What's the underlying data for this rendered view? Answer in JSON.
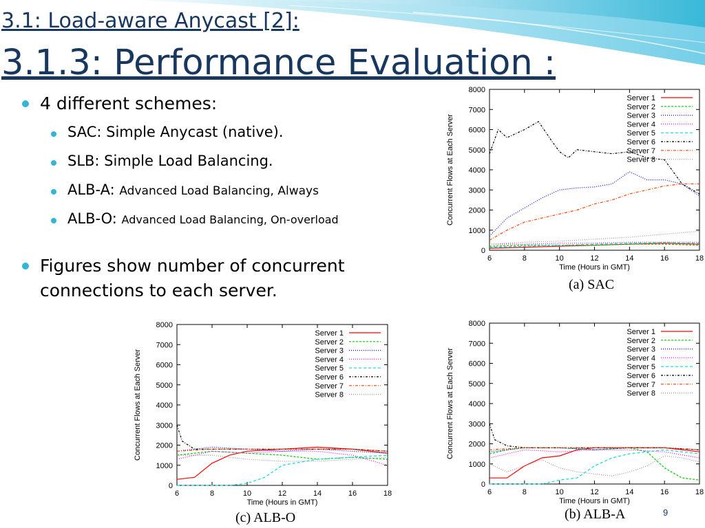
{
  "slide": {
    "subtitle": "3.1: Load-aware Anycast [2]:",
    "title": "3.1.3: Performance Evaluation :",
    "page_number": "9",
    "accent": "#31b6d6",
    "title_color": "#17375e"
  },
  "bullets": {
    "b1": "4 different schemes:",
    "b1_items": [
      {
        "main": "SAC: Simple Anycast  (native).",
        "detail": ""
      },
      {
        "main": "SLB: Simple Load Balancing.",
        "detail": ""
      },
      {
        "main": "ALB-A: ",
        "detail": "Advanced Load Balancing, Always"
      },
      {
        "main": "ALB-O: ",
        "detail": "Advanced Load Balancing, On-overload"
      }
    ],
    "b2_line1": "Figures show number of concurrent",
    "b2_line2": "connections to each server."
  },
  "chart_data": [
    {
      "id": "sac",
      "type": "line",
      "caption": "(a) SAC",
      "xlabel": "Time (Hours in GMT)",
      "ylabel": "Concurrent Flows at Each Server",
      "xlim": [
        6,
        18
      ],
      "ylim": [
        0,
        8000
      ],
      "xticks": [
        "6",
        "8",
        "10",
        "12",
        "14",
        "16",
        "18"
      ],
      "yticks": [
        "0",
        "1000",
        "2000",
        "3000",
        "4000",
        "5000",
        "6000",
        "7000",
        "8000"
      ],
      "legend_position": "top-right",
      "series": [
        {
          "name": "Server 1",
          "color": "#ff0000",
          "dash": "",
          "x": [
            6,
            8,
            10,
            12,
            14,
            16,
            18
          ],
          "y": [
            100,
            150,
            200,
            250,
            300,
            350,
            300
          ]
        },
        {
          "name": "Server 2",
          "color": "#00cc00",
          "dash": "3,2",
          "x": [
            6,
            8,
            10,
            12,
            14,
            16,
            18
          ],
          "y": [
            200,
            250,
            250,
            250,
            300,
            300,
            250
          ]
        },
        {
          "name": "Server 3",
          "color": "#0000ff",
          "dash": "1,2",
          "x": [
            6,
            7,
            8,
            9,
            10,
            11,
            12,
            13,
            14,
            15,
            16,
            17,
            18
          ],
          "y": [
            700,
            1600,
            2100,
            2600,
            3000,
            3100,
            3150,
            3300,
            3900,
            3500,
            3500,
            3300,
            2700
          ]
        },
        {
          "name": "Server 4",
          "color": "#ff00ff",
          "dash": "1,2",
          "x": [
            6,
            8,
            10,
            12,
            14,
            16,
            18
          ],
          "y": [
            300,
            300,
            350,
            350,
            400,
            400,
            400
          ]
        },
        {
          "name": "Server 5",
          "color": "#00dddd",
          "dash": "4,3",
          "x": [
            6,
            8,
            10,
            12,
            14,
            16,
            18
          ],
          "y": [
            150,
            200,
            250,
            300,
            350,
            400,
            350
          ]
        },
        {
          "name": "Server 6",
          "color": "#000000",
          "dash": "3,2,1,2",
          "x": [
            6,
            6.5,
            7,
            8,
            8.8,
            9.5,
            10,
            10.5,
            11,
            12,
            13,
            14,
            15,
            16,
            17,
            18
          ],
          "y": [
            4800,
            6000,
            5600,
            6000,
            6400,
            5500,
            4900,
            4600,
            5000,
            4900,
            4800,
            4900,
            4600,
            4500,
            3300,
            2800
          ]
        },
        {
          "name": "Server 7",
          "color": "#ff4400",
          "dash": "4,2,1,2",
          "x": [
            6,
            7,
            8,
            9,
            10,
            11,
            12,
            13,
            14,
            15,
            16,
            17,
            18
          ],
          "y": [
            500,
            1000,
            1400,
            1600,
            1800,
            2000,
            2300,
            2500,
            2800,
            3000,
            3200,
            3300,
            3300
          ]
        },
        {
          "name": "Server 8",
          "color": "#999999",
          "dash": "1,2",
          "x": [
            6,
            8,
            10,
            12,
            14,
            16,
            18
          ],
          "y": [
            300,
            400,
            450,
            550,
            650,
            800,
            950
          ]
        }
      ]
    },
    {
      "id": "alb-a",
      "type": "line",
      "caption": "(b) ALB-A",
      "xlabel": "Time (Hours in GMT)",
      "ylabel": "Concurrent Flows at Each Server",
      "xlim": [
        6,
        18
      ],
      "ylim": [
        0,
        8000
      ],
      "xticks": [
        "6",
        "8",
        "10",
        "12",
        "14",
        "16",
        "18"
      ],
      "yticks": [
        "0",
        "1000",
        "2000",
        "3000",
        "4000",
        "5000",
        "6000",
        "7000",
        "8000"
      ],
      "legend_position": "top-right",
      "series": [
        {
          "name": "Server 1",
          "color": "#ff0000",
          "dash": "",
          "x": [
            6,
            7,
            8,
            9,
            10,
            11,
            12,
            14,
            16,
            18
          ],
          "y": [
            300,
            300,
            900,
            1300,
            1400,
            1700,
            1800,
            1800,
            1800,
            1600
          ]
        },
        {
          "name": "Server 2",
          "color": "#00cc00",
          "dash": "3,2",
          "x": [
            6,
            7,
            8,
            10,
            12,
            14,
            15,
            16,
            17,
            18
          ],
          "y": [
            1500,
            1700,
            1800,
            1800,
            1700,
            1800,
            1600,
            800,
            300,
            200
          ]
        },
        {
          "name": "Server 3",
          "color": "#0000ff",
          "dash": "1,2",
          "x": [
            6,
            8,
            10,
            12,
            14,
            16,
            18
          ],
          "y": [
            1600,
            1800,
            1800,
            1700,
            1800,
            1800,
            1700
          ]
        },
        {
          "name": "Server 4",
          "color": "#ff00ff",
          "dash": "1,2",
          "x": [
            6,
            8,
            10,
            12,
            14,
            16,
            18
          ],
          "y": [
            1300,
            1700,
            1600,
            1700,
            1700,
            1600,
            1300
          ]
        },
        {
          "name": "Server 5",
          "color": "#00dddd",
          "dash": "4,3",
          "x": [
            6,
            8,
            9,
            10,
            11,
            12,
            13,
            14,
            16,
            18
          ],
          "y": [
            0,
            0,
            0,
            200,
            300,
            900,
            1300,
            1500,
            1700,
            1500
          ]
        },
        {
          "name": "Server 6",
          "color": "#000000",
          "dash": "3,2,1,2",
          "x": [
            6,
            6.3,
            7,
            8,
            10,
            12,
            14,
            16,
            18
          ],
          "y": [
            3000,
            2200,
            1900,
            1800,
            1800,
            1800,
            1800,
            1800,
            1700
          ]
        },
        {
          "name": "Server 7",
          "color": "#ff4400",
          "dash": "4,2,1,2",
          "x": [
            6,
            8,
            10,
            12,
            14,
            16,
            18
          ],
          "y": [
            1700,
            1800,
            1800,
            1800,
            1800,
            1800,
            1700
          ]
        },
        {
          "name": "Server 8",
          "color": "#999999",
          "dash": "1,2",
          "x": [
            6,
            7,
            8,
            9,
            10,
            11,
            12,
            13,
            14,
            15,
            16,
            17,
            18
          ],
          "y": [
            1000,
            600,
            900,
            1200,
            800,
            600,
            500,
            400,
            600,
            900,
            1400,
            1300,
            1100
          ]
        }
      ]
    },
    {
      "id": "alb-o",
      "type": "line",
      "caption": "(c) ALB-O",
      "xlabel": "Time (Hours in GMT)",
      "ylabel": "Concurrent Flows at Each Server",
      "xlim": [
        6,
        18
      ],
      "ylim": [
        0,
        8000
      ],
      "xticks": [
        "6",
        "8",
        "10",
        "12",
        "14",
        "16",
        "18"
      ],
      "yticks": [
        "0",
        "1000",
        "2000",
        "3000",
        "4000",
        "5000",
        "6000",
        "7000",
        "8000"
      ],
      "legend_position": "top-right",
      "series": [
        {
          "name": "Server 1",
          "color": "#ff0000",
          "dash": "",
          "x": [
            6,
            7,
            8,
            9,
            10,
            12,
            14,
            16,
            18
          ],
          "y": [
            300,
            400,
            1100,
            1500,
            1700,
            1800,
            1900,
            1800,
            1600
          ]
        },
        {
          "name": "Server 2",
          "color": "#00cc00",
          "dash": "3,2",
          "x": [
            6,
            8,
            10,
            12,
            14,
            16,
            18
          ],
          "y": [
            1500,
            1700,
            1600,
            1500,
            1300,
            1400,
            1300
          ]
        },
        {
          "name": "Server 3",
          "color": "#0000ff",
          "dash": "1,2",
          "x": [
            6,
            8,
            10,
            12,
            14,
            16,
            18
          ],
          "y": [
            1700,
            1900,
            1800,
            1700,
            1800,
            1700,
            1600
          ]
        },
        {
          "name": "Server 4",
          "color": "#ff00ff",
          "dash": "1,2",
          "x": [
            6,
            8,
            10,
            12,
            14,
            16,
            18
          ],
          "y": [
            1300,
            1700,
            1600,
            1700,
            1700,
            1500,
            1000
          ]
        },
        {
          "name": "Server 5",
          "color": "#00dddd",
          "dash": "4,3",
          "x": [
            6,
            8,
            9,
            10,
            11,
            12,
            14,
            16,
            18
          ],
          "y": [
            0,
            0,
            0,
            100,
            400,
            1000,
            1300,
            1400,
            1500
          ]
        },
        {
          "name": "Server 6",
          "color": "#000000",
          "dash": "3,2,1,2",
          "x": [
            6,
            6.3,
            7,
            8,
            10,
            12,
            14,
            16,
            18
          ],
          "y": [
            3000,
            2200,
            1800,
            1800,
            1800,
            1800,
            1800,
            1800,
            1700
          ]
        },
        {
          "name": "Server 7",
          "color": "#ff4400",
          "dash": "4,2,1,2",
          "x": [
            6,
            8,
            10,
            12,
            14,
            16,
            18
          ],
          "y": [
            1700,
            1800,
            1800,
            1800,
            1800,
            1800,
            1700
          ]
        },
        {
          "name": "Server 8",
          "color": "#999999",
          "dash": "1,2",
          "x": [
            6,
            8,
            10,
            12,
            14,
            16,
            18
          ],
          "y": [
            1500,
            1500,
            1300,
            1200,
            1200,
            1300,
            1400
          ]
        }
      ]
    }
  ]
}
